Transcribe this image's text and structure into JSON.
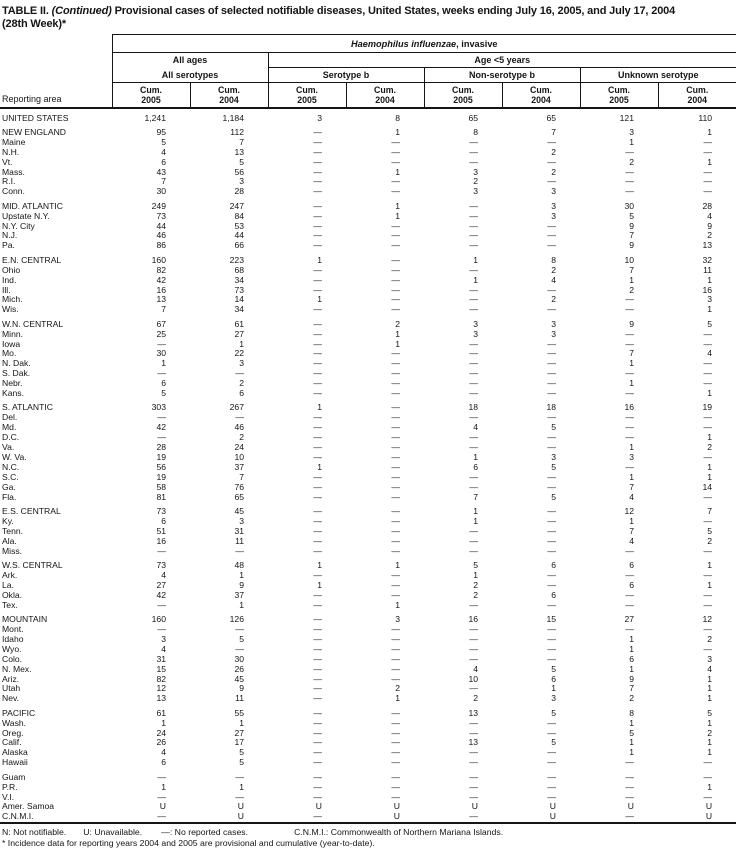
{
  "title": {
    "prefix": "TABLE II. ",
    "continued": "(Continued)",
    "rest": " Provisional cases of selected notifiable diseases, United States, weeks ending July 16, 2005, and July 17, 2004",
    "line2": "(28th Week)*"
  },
  "table": {
    "area_label": "Reporting area",
    "disease_italic": "Haemophilus influenzae",
    "disease_rest": ", invasive",
    "group_all_ages": "All ages",
    "group_age5": "Age <5 years",
    "sub_all_serotypes": "All serotypes",
    "sub_serotype_b": "Serotype b",
    "sub_non_serotype_b": "Non-serotype b",
    "sub_unknown": "Unknown serotype",
    "columns": [
      {
        "cum": "Cum.",
        "year": "2005"
      },
      {
        "cum": "Cum.",
        "year": "2004"
      },
      {
        "cum": "Cum.",
        "year": "2005"
      },
      {
        "cum": "Cum.",
        "year": "2004"
      },
      {
        "cum": "Cum.",
        "year": "2005"
      },
      {
        "cum": "Cum.",
        "year": "2004"
      },
      {
        "cum": "Cum.",
        "year": "2005"
      },
      {
        "cum": "Cum.",
        "year": "2004"
      }
    ],
    "rows": [
      {
        "area": "UNITED STATES",
        "values": [
          "1,241",
          "1,184",
          "3",
          "8",
          "65",
          "65",
          "121",
          "110"
        ],
        "section_start": true
      },
      {
        "area": "NEW ENGLAND",
        "values": [
          "95",
          "112",
          "—",
          "1",
          "8",
          "7",
          "3",
          "1"
        ],
        "section_start": true
      },
      {
        "area": "Maine",
        "values": [
          "5",
          "7",
          "—",
          "—",
          "—",
          "—",
          "1",
          "—"
        ]
      },
      {
        "area": "N.H.",
        "values": [
          "4",
          "13",
          "—",
          "—",
          "—",
          "2",
          "—",
          "—"
        ]
      },
      {
        "area": "Vt.",
        "values": [
          "6",
          "5",
          "—",
          "—",
          "—",
          "—",
          "2",
          "1"
        ]
      },
      {
        "area": "Mass.",
        "values": [
          "43",
          "56",
          "—",
          "1",
          "3",
          "2",
          "—",
          "—"
        ]
      },
      {
        "area": "R.I.",
        "values": [
          "7",
          "3",
          "—",
          "—",
          "2",
          "—",
          "—",
          "—"
        ]
      },
      {
        "area": "Conn.",
        "values": [
          "30",
          "28",
          "—",
          "—",
          "3",
          "3",
          "—",
          "—"
        ]
      },
      {
        "area": "MID. ATLANTIC",
        "values": [
          "249",
          "247",
          "—",
          "1",
          "—",
          "3",
          "30",
          "28"
        ],
        "section_start": true
      },
      {
        "area": "Upstate N.Y.",
        "values": [
          "73",
          "84",
          "—",
          "1",
          "—",
          "3",
          "5",
          "4"
        ]
      },
      {
        "area": "N.Y. City",
        "values": [
          "44",
          "53",
          "—",
          "—",
          "—",
          "—",
          "9",
          "9"
        ]
      },
      {
        "area": "N.J.",
        "values": [
          "46",
          "44",
          "—",
          "—",
          "—",
          "—",
          "7",
          "2"
        ]
      },
      {
        "area": "Pa.",
        "values": [
          "86",
          "66",
          "—",
          "—",
          "—",
          "—",
          "9",
          "13"
        ]
      },
      {
        "area": "E.N. CENTRAL",
        "values": [
          "160",
          "223",
          "1",
          "—",
          "1",
          "8",
          "10",
          "32"
        ],
        "section_start": true
      },
      {
        "area": "Ohio",
        "values": [
          "82",
          "68",
          "—",
          "—",
          "—",
          "2",
          "7",
          "11"
        ]
      },
      {
        "area": "Ind.",
        "values": [
          "42",
          "34",
          "—",
          "—",
          "1",
          "4",
          "1",
          "1"
        ]
      },
      {
        "area": "Ill.",
        "values": [
          "16",
          "73",
          "—",
          "—",
          "—",
          "—",
          "2",
          "16"
        ]
      },
      {
        "area": "Mich.",
        "values": [
          "13",
          "14",
          "1",
          "—",
          "—",
          "2",
          "—",
          "3"
        ]
      },
      {
        "area": "Wis.",
        "values": [
          "7",
          "34",
          "—",
          "—",
          "—",
          "—",
          "—",
          "1"
        ]
      },
      {
        "area": "W.N. CENTRAL",
        "values": [
          "67",
          "61",
          "—",
          "2",
          "3",
          "3",
          "9",
          "5"
        ],
        "section_start": true
      },
      {
        "area": "Minn.",
        "values": [
          "25",
          "27",
          "—",
          "1",
          "3",
          "3",
          "—",
          "—"
        ]
      },
      {
        "area": "Iowa",
        "values": [
          "—",
          "1",
          "—",
          "1",
          "—",
          "—",
          "—",
          "—"
        ]
      },
      {
        "area": "Mo.",
        "values": [
          "30",
          "22",
          "—",
          "—",
          "—",
          "—",
          "7",
          "4"
        ]
      },
      {
        "area": "N. Dak.",
        "values": [
          "1",
          "3",
          "—",
          "—",
          "—",
          "—",
          "1",
          "—"
        ]
      },
      {
        "area": "S. Dak.",
        "values": [
          "—",
          "—",
          "—",
          "—",
          "—",
          "—",
          "—",
          "—"
        ]
      },
      {
        "area": "Nebr.",
        "values": [
          "6",
          "2",
          "—",
          "—",
          "—",
          "—",
          "1",
          "—"
        ]
      },
      {
        "area": "Kans.",
        "values": [
          "5",
          "6",
          "—",
          "—",
          "—",
          "—",
          "—",
          "1"
        ]
      },
      {
        "area": "S. ATLANTIC",
        "values": [
          "303",
          "267",
          "1",
          "—",
          "18",
          "18",
          "16",
          "19"
        ],
        "section_start": true
      },
      {
        "area": "Del.",
        "values": [
          "—",
          "—",
          "—",
          "—",
          "—",
          "—",
          "—",
          "—"
        ]
      },
      {
        "area": "Md.",
        "values": [
          "42",
          "46",
          "—",
          "—",
          "4",
          "5",
          "—",
          "—"
        ]
      },
      {
        "area": "D.C.",
        "values": [
          "—",
          "2",
          "—",
          "—",
          "—",
          "—",
          "—",
          "1"
        ]
      },
      {
        "area": "Va.",
        "values": [
          "28",
          "24",
          "—",
          "—",
          "—",
          "—",
          "1",
          "2"
        ]
      },
      {
        "area": "W. Va.",
        "values": [
          "19",
          "10",
          "—",
          "—",
          "1",
          "3",
          "3",
          "—"
        ]
      },
      {
        "area": "N.C.",
        "values": [
          "56",
          "37",
          "1",
          "—",
          "6",
          "5",
          "—",
          "1"
        ]
      },
      {
        "area": "S.C.",
        "values": [
          "19",
          "7",
          "—",
          "—",
          "—",
          "—",
          "1",
          "1"
        ]
      },
      {
        "area": "Ga.",
        "values": [
          "58",
          "76",
          "—",
          "—",
          "—",
          "—",
          "7",
          "14"
        ]
      },
      {
        "area": "Fla.",
        "values": [
          "81",
          "65",
          "—",
          "—",
          "7",
          "5",
          "4",
          "—"
        ]
      },
      {
        "area": "E.S. CENTRAL",
        "values": [
          "73",
          "45",
          "—",
          "—",
          "1",
          "—",
          "12",
          "7"
        ],
        "section_start": true
      },
      {
        "area": "Ky.",
        "values": [
          "6",
          "3",
          "—",
          "—",
          "1",
          "—",
          "1",
          "—"
        ]
      },
      {
        "area": "Tenn.",
        "values": [
          "51",
          "31",
          "—",
          "—",
          "—",
          "—",
          "7",
          "5"
        ]
      },
      {
        "area": "Ala.",
        "values": [
          "16",
          "11",
          "—",
          "—",
          "—",
          "—",
          "4",
          "2"
        ]
      },
      {
        "area": "Miss.",
        "values": [
          "—",
          "—",
          "—",
          "—",
          "—",
          "—",
          "—",
          "—"
        ]
      },
      {
        "area": "W.S. CENTRAL",
        "values": [
          "73",
          "48",
          "1",
          "1",
          "5",
          "6",
          "6",
          "1"
        ],
        "section_start": true
      },
      {
        "area": "Ark.",
        "values": [
          "4",
          "1",
          "—",
          "—",
          "1",
          "—",
          "—",
          "—"
        ]
      },
      {
        "area": "La.",
        "values": [
          "27",
          "9",
          "1",
          "—",
          "2",
          "—",
          "6",
          "1"
        ]
      },
      {
        "area": "Okla.",
        "values": [
          "42",
          "37",
          "—",
          "—",
          "2",
          "6",
          "—",
          "—"
        ]
      },
      {
        "area": "Tex.",
        "values": [
          "—",
          "1",
          "—",
          "1",
          "—",
          "—",
          "—",
          "—"
        ]
      },
      {
        "area": "MOUNTAIN",
        "values": [
          "160",
          "126",
          "—",
          "3",
          "16",
          "15",
          "27",
          "12"
        ],
        "section_start": true
      },
      {
        "area": "Mont.",
        "values": [
          "—",
          "—",
          "—",
          "—",
          "—",
          "—",
          "—",
          "—"
        ]
      },
      {
        "area": "Idaho",
        "values": [
          "3",
          "5",
          "—",
          "—",
          "—",
          "—",
          "1",
          "2"
        ]
      },
      {
        "area": "Wyo.",
        "values": [
          "4",
          "—",
          "—",
          "—",
          "—",
          "—",
          "1",
          "—"
        ]
      },
      {
        "area": "Colo.",
        "values": [
          "31",
          "30",
          "—",
          "—",
          "—",
          "—",
          "6",
          "3"
        ]
      },
      {
        "area": "N. Mex.",
        "values": [
          "15",
          "26",
          "—",
          "—",
          "4",
          "5",
          "1",
          "4"
        ]
      },
      {
        "area": "Ariz.",
        "values": [
          "82",
          "45",
          "—",
          "—",
          "10",
          "6",
          "9",
          "1"
        ]
      },
      {
        "area": "Utah",
        "values": [
          "12",
          "9",
          "—",
          "2",
          "—",
          "1",
          "7",
          "1"
        ]
      },
      {
        "area": "Nev.",
        "values": [
          "13",
          "11",
          "—",
          "1",
          "2",
          "3",
          "2",
          "1"
        ]
      },
      {
        "area": "PACIFIC",
        "values": [
          "61",
          "55",
          "—",
          "—",
          "13",
          "5",
          "8",
          "5"
        ],
        "section_start": true
      },
      {
        "area": "Wash.",
        "values": [
          "1",
          "1",
          "—",
          "—",
          "—",
          "—",
          "1",
          "1"
        ]
      },
      {
        "area": "Oreg.",
        "values": [
          "24",
          "27",
          "—",
          "—",
          "—",
          "—",
          "5",
          "2"
        ]
      },
      {
        "area": "Calif.",
        "values": [
          "26",
          "17",
          "—",
          "—",
          "13",
          "5",
          "1",
          "1"
        ]
      },
      {
        "area": "Alaska",
        "values": [
          "4",
          "5",
          "—",
          "—",
          "—",
          "—",
          "1",
          "1"
        ]
      },
      {
        "area": "Hawaii",
        "values": [
          "6",
          "5",
          "—",
          "—",
          "—",
          "—",
          "—",
          "—"
        ]
      },
      {
        "area": "Guam",
        "values": [
          "—",
          "—",
          "—",
          "—",
          "—",
          "—",
          "—",
          "—"
        ],
        "section_start": true
      },
      {
        "area": "P.R.",
        "values": [
          "1",
          "1",
          "—",
          "—",
          "—",
          "—",
          "—",
          "1"
        ]
      },
      {
        "area": "V.I.",
        "values": [
          "—",
          "—",
          "—",
          "—",
          "—",
          "—",
          "—",
          "—"
        ]
      },
      {
        "area": "Amer. Samoa",
        "values": [
          "U",
          "U",
          "U",
          "U",
          "U",
          "U",
          "U",
          "U"
        ]
      },
      {
        "area": "C.N.M.I.",
        "values": [
          "—",
          "U",
          "—",
          "U",
          "—",
          "U",
          "—",
          "U"
        ]
      }
    ]
  },
  "footnotes": {
    "legend": [
      "N: Not notifiable.",
      "U: Unavailable.",
      "—: No reported cases.",
      "C.N.M.I.: Commonwealth of Northern Mariana Islands."
    ],
    "note": "* Incidence data for reporting years 2004 and 2005 are provisional and cumulative (year-to-date)."
  }
}
